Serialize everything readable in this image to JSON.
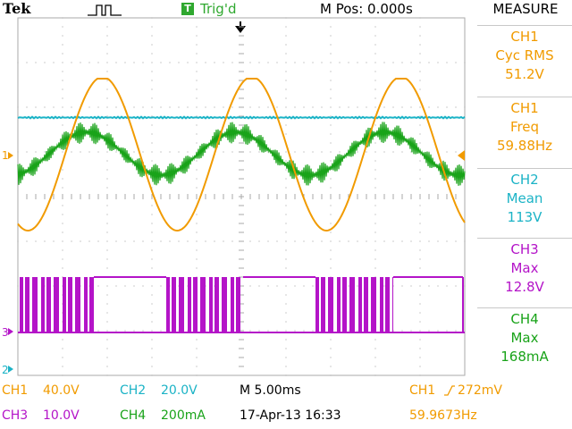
{
  "header": {
    "brand": "Tek",
    "trigger_state": "Trig'd",
    "trigger_icon": "T",
    "run_icon": "acquisition-pulse-icon",
    "m_pos": "M Pos: 0.000s",
    "measure_title": "MEASURE"
  },
  "measurements": [
    {
      "channel": "CH1",
      "type": "Cyc RMS",
      "value": "51.2V",
      "color": "#f19b00"
    },
    {
      "channel": "CH1",
      "type": "Freq",
      "value": "59.88Hz",
      "color": "#f19b00"
    },
    {
      "channel": "CH2",
      "type": "Mean",
      "value": "113V",
      "color": "#1bb3c6"
    },
    {
      "channel": "CH3",
      "type": "Max",
      "value": "12.8V",
      "color": "#b414c8"
    },
    {
      "channel": "CH4",
      "type": "Max",
      "value": "168mA",
      "color": "#19a319"
    }
  ],
  "channels": {
    "ch1": {
      "label": "CH1",
      "scale": "40.0V",
      "color": "#f19b00"
    },
    "ch2": {
      "label": "CH2",
      "scale": "20.0V",
      "color": "#1bb3c6"
    },
    "ch3": {
      "label": "CH3",
      "scale": "10.0V",
      "color": "#b414c8"
    },
    "ch4": {
      "label": "CH4",
      "scale": "200mA",
      "color": "#19a319"
    }
  },
  "markers": {
    "ch1": "1",
    "ch2": "2",
    "ch3": "3"
  },
  "timebase": "M 5.00ms",
  "trigger": {
    "source": "CH1",
    "slope_icon": "rising-edge-icon",
    "level": "272mV"
  },
  "date": "17-Apr-13 16:33",
  "frequency_readout": "59.9673Hz"
}
